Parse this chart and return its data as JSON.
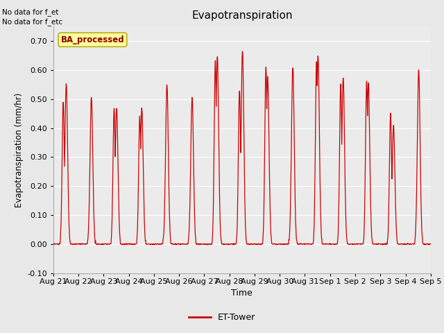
{
  "title": "Evapotranspiration",
  "ylabel": "Evapotranspiration (mm/hr)",
  "xlabel": "Time",
  "ylim": [
    -0.1,
    0.75
  ],
  "yticks": [
    -0.1,
    0.0,
    0.1,
    0.2,
    0.3,
    0.4,
    0.5,
    0.6,
    0.7
  ],
  "line_color": "#cc0000",
  "line_width": 0.9,
  "background_color": "#e8e8e8",
  "plot_bg_color": "#ebebeb",
  "grid_color": "#ffffff",
  "text_annotations": [
    "No data for f_et",
    "No data for f_etc"
  ],
  "ba_label": "BA_processed",
  "legend_label": "ET-Tower",
  "x_tick_labels": [
    "Aug 21",
    "Aug 22",
    "Aug 23",
    "Aug 24",
    "Aug 25",
    "Aug 26",
    "Aug 27",
    "Aug 28",
    "Aug 29",
    "Aug 30",
    "Aug 31",
    "Sep 1",
    "Sep 2",
    "Sep 3",
    "Sep 4",
    "Sep 5"
  ],
  "daily_peaks": [
    0.555,
    0.505,
    0.47,
    0.47,
    0.55,
    0.505,
    0.65,
    0.668,
    0.575,
    0.615,
    0.65,
    0.575,
    0.555,
    0.41,
    0.6
  ],
  "secondary_peaks": [
    0.49,
    0.0,
    0.47,
    0.44,
    0.0,
    0.0,
    0.63,
    0.53,
    0.61,
    0.0,
    0.63,
    0.55,
    0.56,
    0.45,
    0.0
  ],
  "secondary_offsets": [
    -0.12,
    0.0,
    -0.1,
    -0.08,
    0.0,
    0.0,
    -0.08,
    -0.12,
    -0.07,
    0.0,
    -0.06,
    -0.1,
    -0.07,
    -0.12,
    0.0
  ]
}
